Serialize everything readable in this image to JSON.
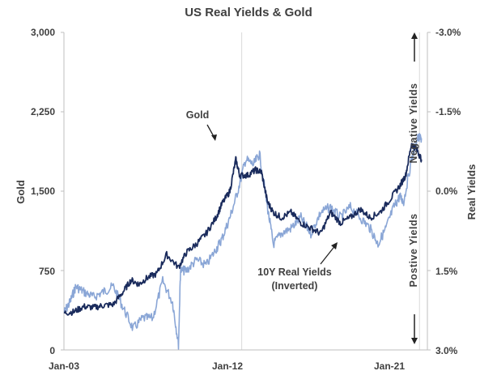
{
  "chart_data": {
    "type": "line",
    "title": "US Real Yields & Gold",
    "ylabel": "Gold",
    "y2label": "Real Yields",
    "x_range": [
      "Jan-03",
      "Jan-21"
    ],
    "x_ticks": [
      "Jan-03",
      "Jan-12",
      "Jan-21"
    ],
    "ylim": [
      0,
      3000
    ],
    "y_ticks": [
      "0",
      "750",
      "1,500",
      "2,250",
      "3,000"
    ],
    "y2_range_inverted": [
      3.0,
      -3.0
    ],
    "y2_ticks": [
      "3.0%",
      "1.5%",
      "0.0%",
      "-1.5%",
      "-3.0%"
    ],
    "grid": "vertical",
    "series": [
      {
        "name": "Gold",
        "axis": "left",
        "color": "#1a2b5c",
        "x": [
          2003.0,
          2003.5,
          2004.0,
          2004.5,
          2005.0,
          2005.5,
          2006.0,
          2006.4,
          2006.8,
          2007.2,
          2007.7,
          2008.2,
          2008.8,
          2009.2,
          2009.7,
          2010.2,
          2010.7,
          2011.0,
          2011.4,
          2011.7,
          2011.9,
          2012.3,
          2012.7,
          2013.0,
          2013.3,
          2013.6,
          2014.0,
          2014.5,
          2015.0,
          2015.5,
          2016.0,
          2016.5,
          2017.0,
          2017.5,
          2018.0,
          2018.5,
          2019.0,
          2019.5,
          2020.0,
          2020.3,
          2020.6,
          2020.9,
          2021.1
        ],
        "y": [
          350,
          360,
          410,
          400,
          420,
          430,
          550,
          660,
          620,
          680,
          720,
          900,
          780,
          920,
          1000,
          1100,
          1250,
          1380,
          1500,
          1800,
          1650,
          1650,
          1700,
          1680,
          1400,
          1300,
          1250,
          1300,
          1200,
          1150,
          1100,
          1300,
          1200,
          1250,
          1330,
          1250,
          1300,
          1420,
          1550,
          1650,
          1950,
          1880,
          1800
        ]
      },
      {
        "name": "10Y Real Yields (Inverted)",
        "axis": "right",
        "color": "#8aa6d6",
        "x": [
          2003.0,
          2003.3,
          2003.6,
          2004.0,
          2004.5,
          2005.0,
          2005.5,
          2006.0,
          2006.5,
          2007.0,
          2007.5,
          2008.0,
          2008.5,
          2008.8,
          2008.9,
          2009.2,
          2009.7,
          2010.2,
          2010.7,
          2011.0,
          2011.4,
          2011.8,
          2012.2,
          2012.6,
          2012.9,
          2013.3,
          2013.6,
          2014.0,
          2014.5,
          2015.0,
          2015.5,
          2016.0,
          2016.5,
          2017.0,
          2017.5,
          2018.0,
          2018.5,
          2018.9,
          2019.3,
          2019.7,
          2020.0,
          2020.2,
          2020.6,
          2020.9,
          2021.1
        ],
        "y": [
          2.3,
          2.1,
          1.8,
          1.9,
          2.0,
          1.9,
          1.8,
          2.2,
          2.6,
          2.4,
          2.4,
          1.7,
          2.1,
          2.9,
          1.5,
          1.5,
          1.3,
          1.4,
          1.1,
          0.9,
          0.5,
          0.0,
          -0.6,
          -0.5,
          -0.7,
          0.3,
          1.0,
          0.8,
          0.7,
          0.5,
          0.8,
          0.4,
          0.3,
          0.5,
          0.3,
          0.5,
          0.7,
          1.0,
          0.7,
          0.3,
          0.1,
          0.2,
          -0.6,
          -1.0,
          -1.0
        ]
      }
    ],
    "annotations": [
      {
        "text": "Gold",
        "target_x": 2011.7,
        "target_y": 1800
      },
      {
        "text": "10Y Real Yields",
        "text2": "(Inverted)",
        "target_x": 2018.9,
        "target_y": 1.0
      }
    ],
    "side_labels": {
      "top": "Negative  Yields",
      "bottom": "Postive  Yields"
    }
  }
}
